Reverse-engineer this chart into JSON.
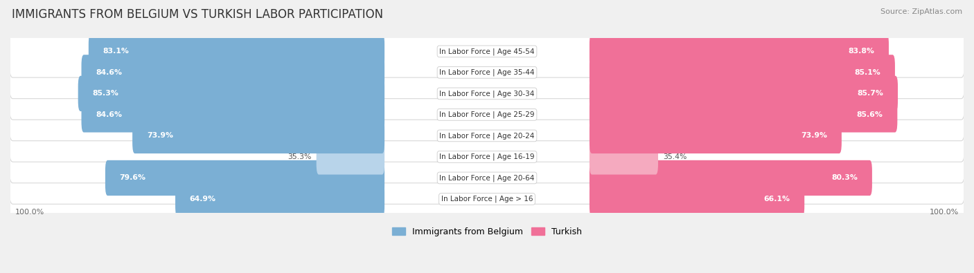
{
  "title": "IMMIGRANTS FROM BELGIUM VS TURKISH LABOR PARTICIPATION",
  "source": "Source: ZipAtlas.com",
  "categories": [
    "In Labor Force | Age > 16",
    "In Labor Force | Age 20-64",
    "In Labor Force | Age 16-19",
    "In Labor Force | Age 20-24",
    "In Labor Force | Age 25-29",
    "In Labor Force | Age 30-34",
    "In Labor Force | Age 35-44",
    "In Labor Force | Age 45-54"
  ],
  "belgium_values": [
    64.9,
    79.6,
    35.3,
    73.9,
    84.6,
    85.3,
    84.6,
    83.1
  ],
  "turkish_values": [
    66.1,
    80.3,
    35.4,
    73.9,
    85.6,
    85.7,
    85.1,
    83.8
  ],
  "belgium_color": "#7BAFD4",
  "turkish_color": "#F07098",
  "belgium_color_light": "#B8D4EA",
  "turkish_color_light": "#F5AABF",
  "background_color": "#f0f0f0",
  "row_bg_color": "#ffffff",
  "row_border_color": "#d8d8d8",
  "max_value": 100.0,
  "legend_belgium": "Immigrants from Belgium",
  "legend_turkish": "Turkish",
  "title_fontsize": 12,
  "label_fontsize": 7.5,
  "value_fontsize": 7.8
}
